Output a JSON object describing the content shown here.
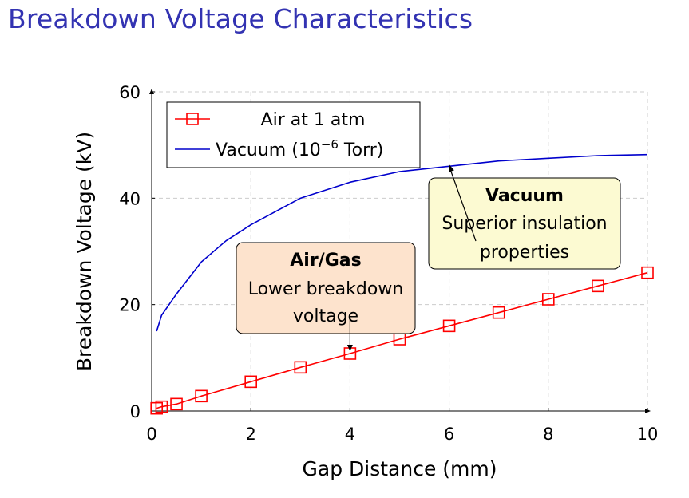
{
  "slide": {
    "title": "Breakdown Voltage Characteristics"
  },
  "chart_data": {
    "type": "line",
    "xlabel": "Gap Distance (mm)",
    "ylabel": "Breakdown Voltage (kV)",
    "xlim": [
      0,
      10
    ],
    "ylim": [
      0,
      60
    ],
    "x_ticks": [
      0,
      2,
      4,
      6,
      8,
      10
    ],
    "y_ticks": [
      0,
      20,
      40,
      60
    ],
    "grid": true,
    "legend_position": "top-left",
    "series": [
      {
        "name": "Air at 1 atm",
        "color": "#ff0000",
        "marker": "square",
        "x": [
          0.1,
          0.2,
          0.5,
          1,
          2,
          3,
          4,
          5,
          6,
          7,
          8,
          9,
          10
        ],
        "y": [
          0.5,
          0.8,
          1.3,
          2.8,
          5.5,
          8.2,
          10.8,
          13.5,
          16.0,
          18.5,
          21.0,
          23.5,
          26.0
        ]
      },
      {
        "name_text": "Vacuum (10",
        "name_sup": "−6",
        "name_tail": " Torr)",
        "color": "#0000cc",
        "marker": "none",
        "x": [
          0.1,
          0.2,
          0.5,
          1,
          1.5,
          2,
          3,
          4,
          5,
          6,
          7,
          8,
          9,
          10
        ],
        "y": [
          15,
          18,
          22,
          28,
          32,
          35,
          40,
          43,
          45,
          46,
          47,
          47.5,
          48,
          48.2
        ]
      }
    ],
    "annotations": [
      {
        "title": "Air/Gas",
        "lines": [
          "Lower breakdown",
          "voltage"
        ],
        "fill": "#fde3cd",
        "target": [
          4,
          10.8
        ]
      },
      {
        "title": "Vacuum",
        "lines": [
          "Superior insulation",
          "properties"
        ],
        "fill": "#fcfad2",
        "target": [
          6,
          46.5
        ]
      }
    ]
  }
}
